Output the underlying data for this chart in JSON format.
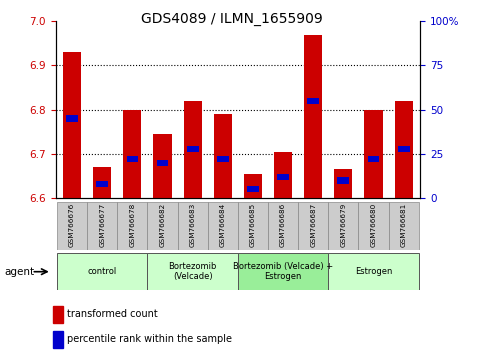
{
  "title": "GDS4089 / ILMN_1655909",
  "samples": [
    "GSM766676",
    "GSM766677",
    "GSM766678",
    "GSM766682",
    "GSM766683",
    "GSM766684",
    "GSM766685",
    "GSM766686",
    "GSM766687",
    "GSM766679",
    "GSM766680",
    "GSM766681"
  ],
  "red_values": [
    6.93,
    6.67,
    6.8,
    6.745,
    6.82,
    6.79,
    6.655,
    6.705,
    6.97,
    6.665,
    6.8,
    6.82
  ],
  "blue_values_pct": [
    45,
    8,
    22,
    20,
    28,
    22,
    5,
    12,
    55,
    10,
    22,
    28
  ],
  "base": 6.6,
  "ylim_left": [
    6.6,
    7.0
  ],
  "ylim_right": [
    0,
    100
  ],
  "yticks_left": [
    6.6,
    6.7,
    6.8,
    6.9,
    7.0
  ],
  "yticks_right": [
    0,
    25,
    50,
    75,
    100
  ],
  "ytick_labels_right": [
    "0",
    "25",
    "50",
    "75",
    "100%"
  ],
  "group_starts": [
    0,
    3,
    6,
    9
  ],
  "group_counts": [
    3,
    3,
    3,
    3
  ],
  "group_labels": [
    "control",
    "Bortezomib\n(Velcade)",
    "Bortezomib (Velcade) +\nEstrogen",
    "Estrogen"
  ],
  "group_colors": [
    "#ccffcc",
    "#ccffcc",
    "#99ee99",
    "#ccffcc"
  ],
  "red_color": "#cc0000",
  "blue_color": "#0000cc",
  "bar_width": 0.6,
  "agent_label": "agent",
  "legend_red": "transformed count",
  "legend_blue": "percentile rank within the sample"
}
